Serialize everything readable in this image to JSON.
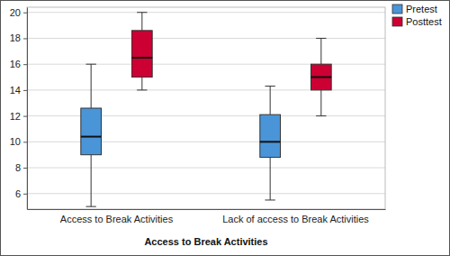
{
  "chart_data": {
    "type": "box",
    "xlabel": "Access to Break Activities",
    "categories": [
      "Access to Break Activities",
      "Lack of access to Break Activities"
    ],
    "series": [
      {
        "name": "Pretest",
        "color": "#4a95d8",
        "min": [
          5,
          5.5
        ],
        "q1": [
          9,
          8.8
        ],
        "median": [
          10.4,
          10
        ],
        "q3": [
          12.6,
          12.1
        ],
        "max": [
          16,
          14.3
        ]
      },
      {
        "name": "Posttest",
        "color": "#cc0033",
        "min": [
          14,
          12
        ],
        "q1": [
          15,
          14
        ],
        "median": [
          16.5,
          15
        ],
        "q3": [
          18.6,
          16
        ],
        "max": [
          20,
          18
        ]
      }
    ],
    "ylim": [
      4.8,
      20.4
    ],
    "yticks": [
      6,
      8,
      10,
      12,
      14,
      16,
      18,
      20
    ],
    "grid": true,
    "legend": "upper right"
  }
}
